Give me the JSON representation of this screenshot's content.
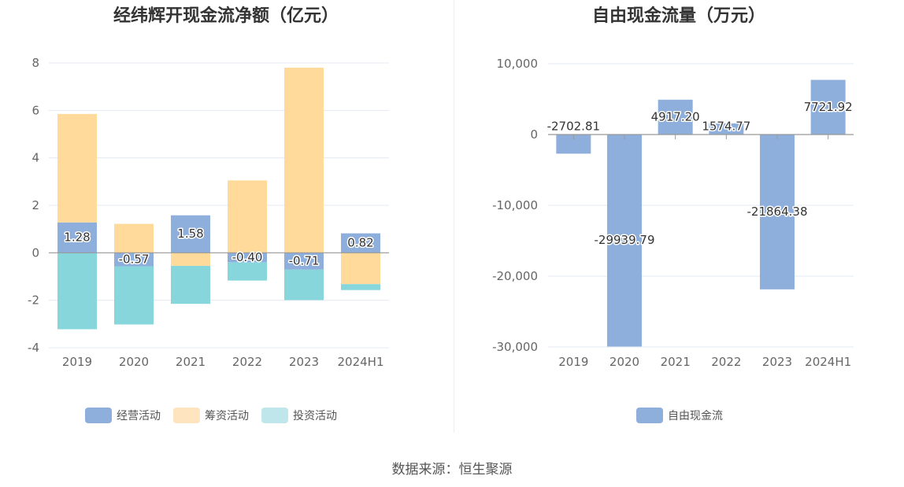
{
  "colors": {
    "operating": "#8eafdc",
    "financing": "#ffda9a",
    "investing": "#87d6dc",
    "fcf": "#8eafdc",
    "legend_investing": "#bfe7eb",
    "legend_financing": "#ffe5bf"
  },
  "chart_data": [
    {
      "type": "bar",
      "stacked": true,
      "title": "经纬辉开现金流净额（亿元）",
      "categories": [
        "2019",
        "2020",
        "2021",
        "2022",
        "2023",
        "2024H1"
      ],
      "ylim": [
        -4,
        8
      ],
      "yticks": [
        "-4",
        "-2",
        "0",
        "2",
        "4",
        "6",
        "8"
      ],
      "series": [
        {
          "name": "经营活动",
          "values": [
            1.28,
            -0.57,
            1.58,
            -0.4,
            -0.71,
            0.82
          ],
          "labels": [
            "1.28",
            "-0.57",
            "1.58",
            "-0.40",
            "-0.71",
            "0.82"
          ]
        },
        {
          "name": "筹资活动",
          "values": [
            4.57,
            1.22,
            -0.55,
            3.05,
            7.8,
            -1.32
          ]
        },
        {
          "name": "投资活动",
          "values": [
            -3.22,
            -2.45,
            -1.6,
            -0.77,
            -1.28,
            -0.25
          ]
        }
      ],
      "legend": [
        "经营活动",
        "筹资活动",
        "投资活动"
      ],
      "grid": true
    },
    {
      "type": "bar",
      "title": "自由现金流量（万元）",
      "categories": [
        "2019",
        "2020",
        "2021",
        "2022",
        "2023",
        "2024H1"
      ],
      "ylim": [
        -30000,
        10000
      ],
      "yticks": [
        "-30,000",
        "-20,000",
        "-10,000",
        "0",
        "10,000"
      ],
      "series": [
        {
          "name": "自由现金流",
          "values": [
            -2702.81,
            -29939.79,
            4917.2,
            1574.77,
            -21864.38,
            7721.92
          ],
          "labels": [
            "-2702.81",
            "-29939.79",
            "4917.20",
            "1574.77",
            "-21864.38",
            "7721.92"
          ]
        }
      ],
      "legend": [
        "自由现金流"
      ],
      "grid": true
    }
  ],
  "footer": "数据来源：恒生聚源"
}
